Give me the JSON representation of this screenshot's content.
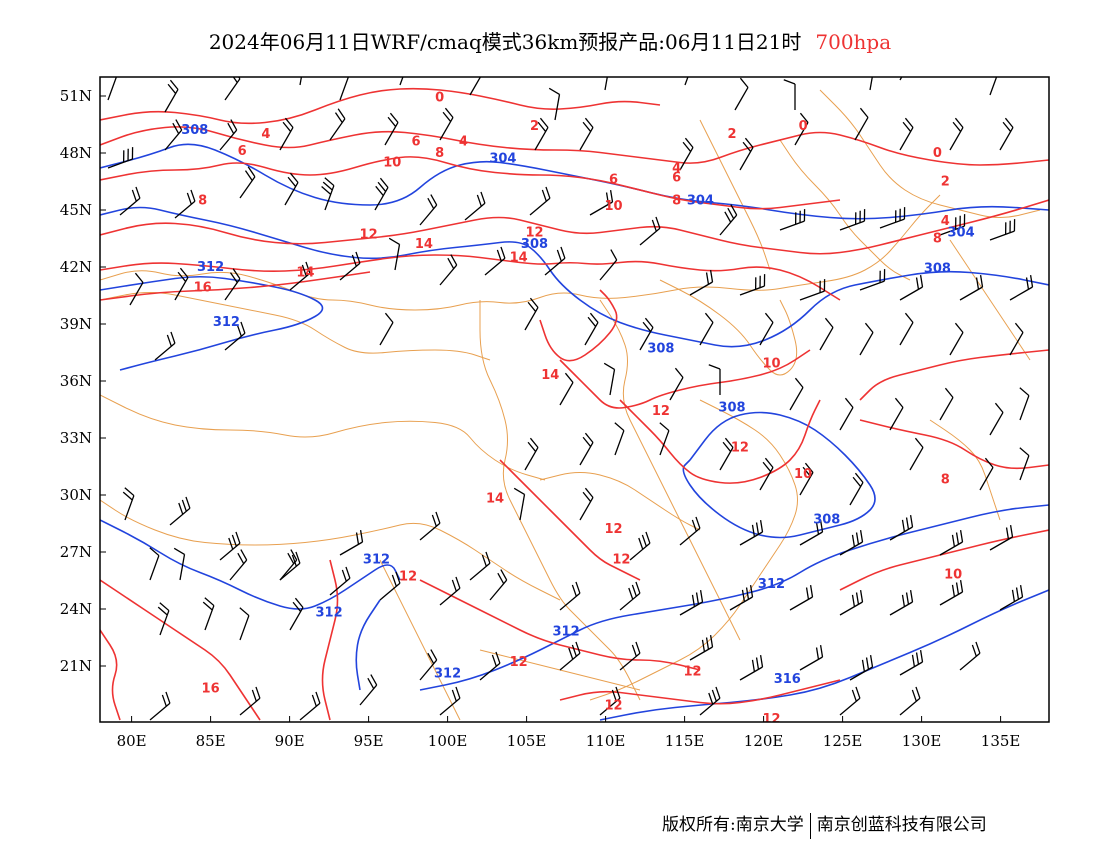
{
  "title": {
    "text": "2024年06月11日WRF/cmaq模式36km预报产品:06月11日21时",
    "level": "700hpa"
  },
  "map": {
    "lat_labels": [
      "51N",
      "48N",
      "45N",
      "42N",
      "39N",
      "36N",
      "33N",
      "30N",
      "27N",
      "24N",
      "21N"
    ],
    "lon_labels": [
      "80E",
      "85E",
      "90E",
      "95E",
      "100E",
      "105E",
      "110E",
      "115E",
      "120E",
      "125E",
      "130E",
      "135E"
    ],
    "colors": {
      "temperature": "#ee3333",
      "height": "#2244dd",
      "border": "#e8a050",
      "wind": "#000000"
    },
    "temperature_labels": [
      {
        "text": "0",
        "lon": 99.5,
        "lat": 50.7
      },
      {
        "text": "2",
        "lon": 105.5,
        "lat": 49.2
      },
      {
        "text": "4",
        "lon": 88.5,
        "lat": 48.8
      },
      {
        "text": "6",
        "lon": 87.0,
        "lat": 47.9
      },
      {
        "text": "6",
        "lon": 98.0,
        "lat": 48.4
      },
      {
        "text": "4",
        "lon": 101.0,
        "lat": 48.4
      },
      {
        "text": "8",
        "lon": 99.5,
        "lat": 47.8
      },
      {
        "text": "10",
        "lon": 96.5,
        "lat": 47.3
      },
      {
        "text": "8",
        "lon": 84.5,
        "lat": 45.3
      },
      {
        "text": "12",
        "lon": 95.0,
        "lat": 43.5
      },
      {
        "text": "14",
        "lon": 98.5,
        "lat": 43.0
      },
      {
        "text": "14",
        "lon": 91.0,
        "lat": 41.5
      },
      {
        "text": "16",
        "lon": 84.5,
        "lat": 40.7
      },
      {
        "text": "12",
        "lon": 105.5,
        "lat": 43.6
      },
      {
        "text": "14",
        "lon": 104.5,
        "lat": 42.3
      },
      {
        "text": "2",
        "lon": 118.0,
        "lat": 48.8
      },
      {
        "text": "0",
        "lon": 122.5,
        "lat": 49.2
      },
      {
        "text": "6",
        "lon": 114.5,
        "lat": 46.5
      },
      {
        "text": "6",
        "lon": 110.5,
        "lat": 46.4
      },
      {
        "text": "4",
        "lon": 114.5,
        "lat": 47.0
      },
      {
        "text": "10",
        "lon": 110.5,
        "lat": 45.0
      },
      {
        "text": "8",
        "lon": 114.5,
        "lat": 45.3
      },
      {
        "text": "0",
        "lon": 131.0,
        "lat": 47.8
      },
      {
        "text": "2",
        "lon": 131.5,
        "lat": 46.3
      },
      {
        "text": "4",
        "lon": 131.5,
        "lat": 44.2
      },
      {
        "text": "8",
        "lon": 131.0,
        "lat": 43.3
      },
      {
        "text": "14",
        "lon": 106.5,
        "lat": 36.1
      },
      {
        "text": "10",
        "lon": 120.5,
        "lat": 36.7
      },
      {
        "text": "12",
        "lon": 113.5,
        "lat": 34.2
      },
      {
        "text": "12",
        "lon": 118.5,
        "lat": 32.3
      },
      {
        "text": "10",
        "lon": 122.5,
        "lat": 30.9
      },
      {
        "text": "8",
        "lon": 131.5,
        "lat": 30.6
      },
      {
        "text": "14",
        "lon": 103.0,
        "lat": 29.6
      },
      {
        "text": "12",
        "lon": 110.5,
        "lat": 28.0
      },
      {
        "text": "12",
        "lon": 111.0,
        "lat": 26.4
      },
      {
        "text": "12",
        "lon": 97.5,
        "lat": 25.5
      },
      {
        "text": "10",
        "lon": 132.0,
        "lat": 25.6
      },
      {
        "text": "12",
        "lon": 104.5,
        "lat": 21.0
      },
      {
        "text": "12",
        "lon": 115.5,
        "lat": 20.5
      },
      {
        "text": "16",
        "lon": 85.0,
        "lat": 19.6
      },
      {
        "text": "12",
        "lon": 110.5,
        "lat": 18.7
      },
      {
        "text": "12",
        "lon": 120.5,
        "lat": 18.0
      }
    ],
    "height_labels": [
      {
        "text": "308",
        "lon": 84.0,
        "lat": 49.0
      },
      {
        "text": "304",
        "lon": 103.5,
        "lat": 47.5
      },
      {
        "text": "304",
        "lon": 116.0,
        "lat": 45.3
      },
      {
        "text": "308",
        "lon": 105.5,
        "lat": 43.0
      },
      {
        "text": "304",
        "lon": 132.5,
        "lat": 43.6
      },
      {
        "text": "312",
        "lon": 85.0,
        "lat": 41.8
      },
      {
        "text": "308",
        "lon": 131.0,
        "lat": 41.7
      },
      {
        "text": "312",
        "lon": 86.0,
        "lat": 38.9
      },
      {
        "text": "308",
        "lon": 113.5,
        "lat": 37.5
      },
      {
        "text": "308",
        "lon": 118.0,
        "lat": 34.4
      },
      {
        "text": "308",
        "lon": 124.0,
        "lat": 28.5
      },
      {
        "text": "312",
        "lon": 95.5,
        "lat": 26.4
      },
      {
        "text": "312",
        "lon": 120.5,
        "lat": 25.1
      },
      {
        "text": "312",
        "lon": 92.5,
        "lat": 23.6
      },
      {
        "text": "312",
        "lon": 107.5,
        "lat": 22.6
      },
      {
        "text": "312",
        "lon": 100.0,
        "lat": 20.4
      },
      {
        "text": "316",
        "lon": 121.5,
        "lat": 20.1
      }
    ]
  }
}
